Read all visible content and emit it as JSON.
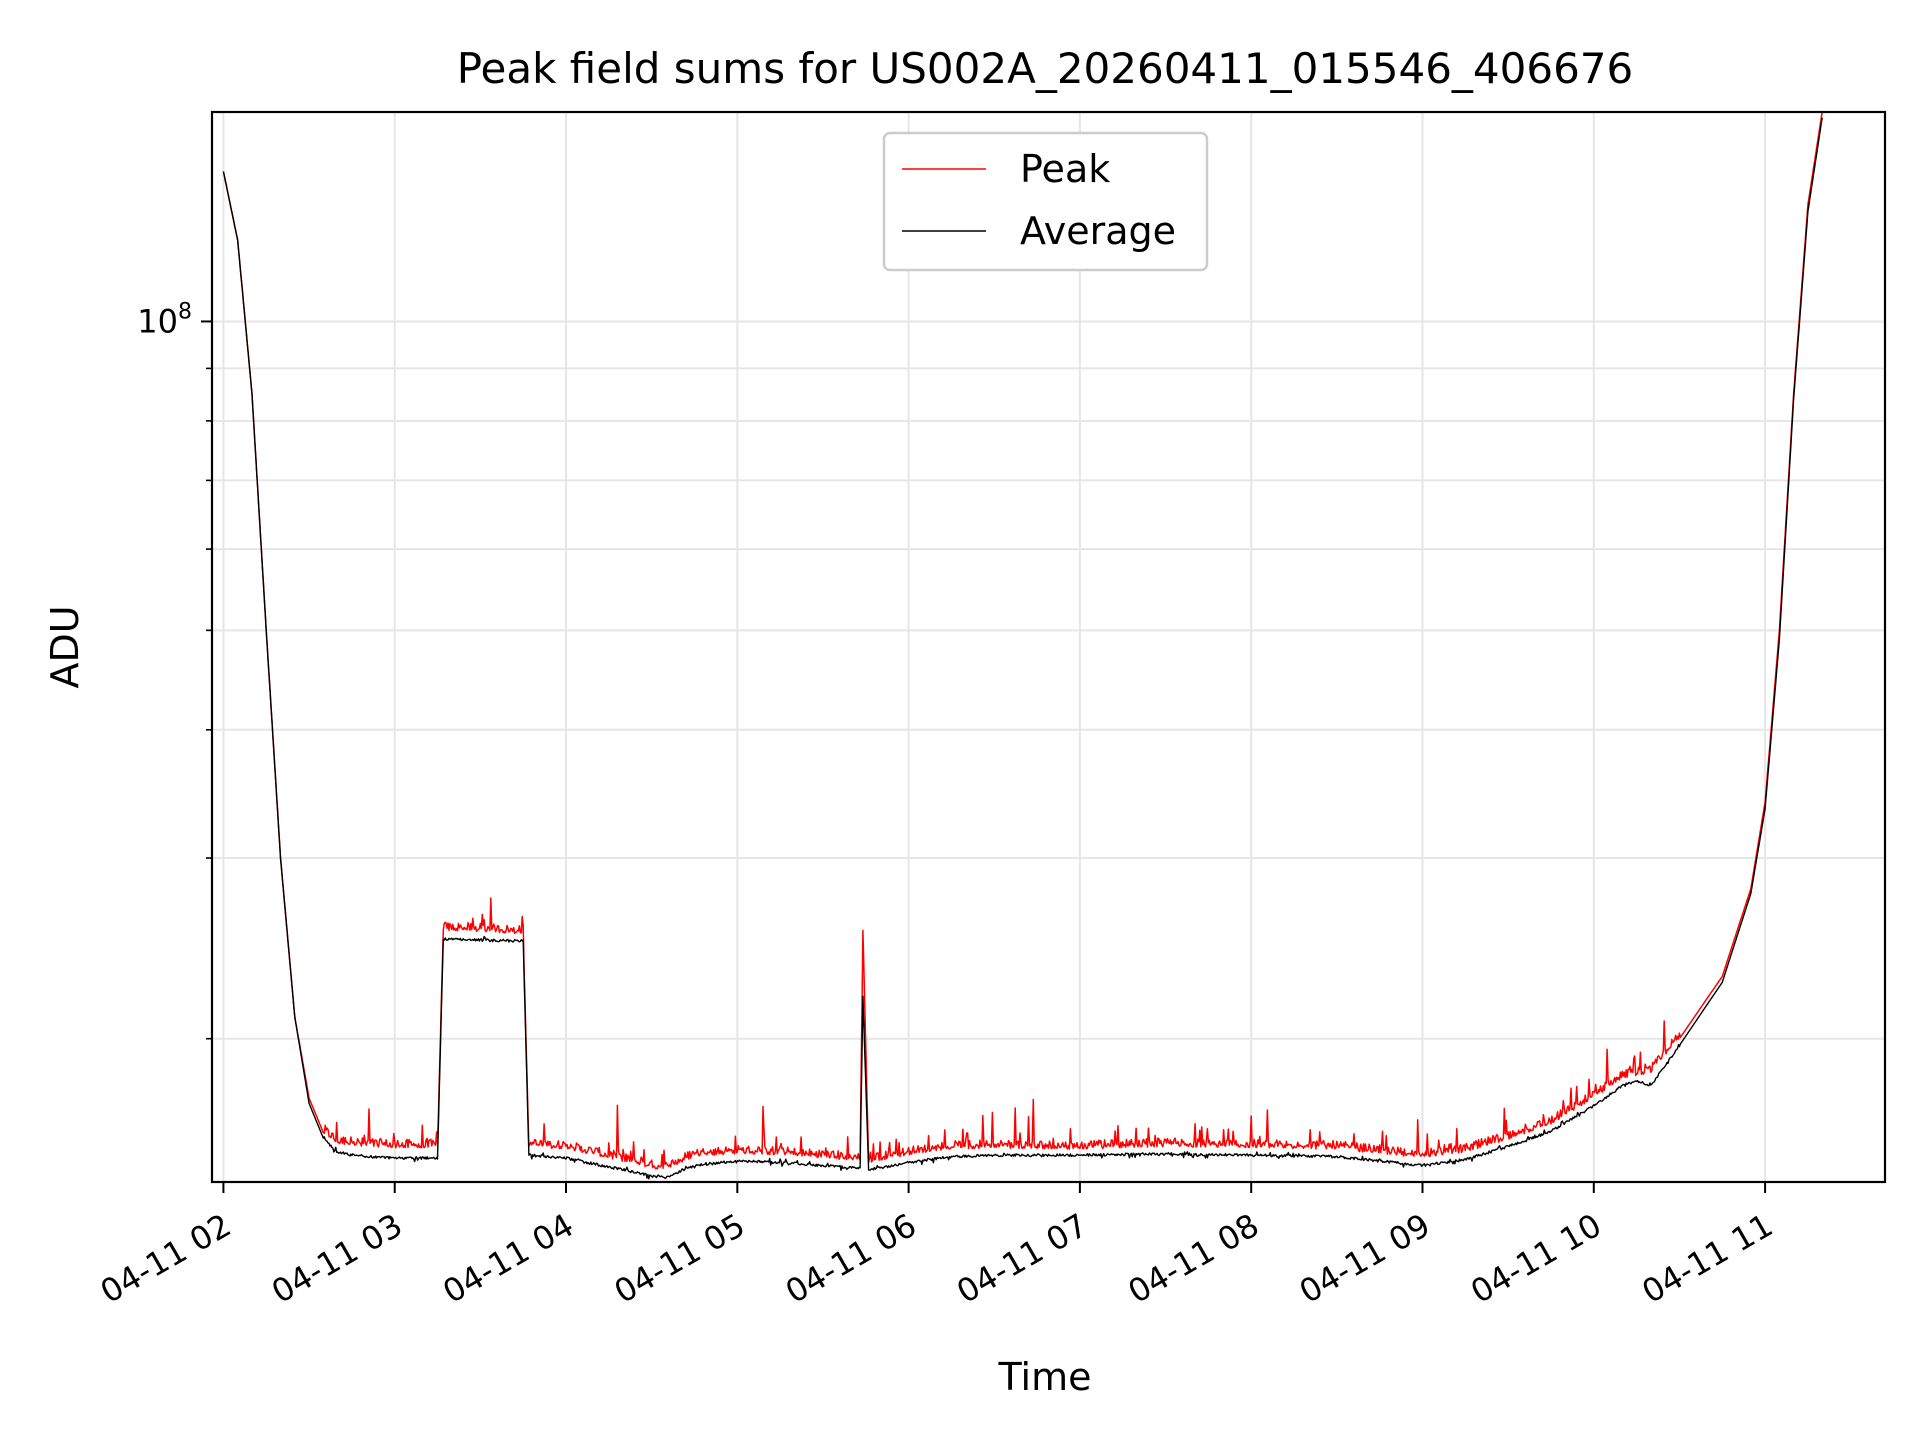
{
  "chart_data": {
    "type": "line",
    "title": "Peak field sums for US002A_20260411_015546_406676",
    "xlabel": "Time",
    "ylabel": "ADU",
    "y_scale": "log",
    "ylim": [
      14500000,
      160000000
    ],
    "xlim": [
      "2026-04-11 01:56",
      "2026-04-11 11:42"
    ],
    "grid": true,
    "legend_position": "upper center",
    "x_ticks": [
      "2026-04-11 02:00",
      "2026-04-11 03:00",
      "2026-04-11 04:00",
      "2026-04-11 05:00",
      "2026-04-11 06:00",
      "2026-04-11 07:00",
      "2026-04-11 08:00",
      "2026-04-11 09:00",
      "2026-04-11 10:00",
      "2026-04-11 11:00"
    ],
    "x_tick_labels": [
      "04-11 02",
      "04-11 03",
      "04-11 04",
      "04-11 05",
      "04-11 06",
      "04-11 07",
      "04-11 08",
      "04-11 09",
      "04-11 10",
      "04-11 11"
    ],
    "y_major_ticks": [
      100000000
    ],
    "y_major_tick_labels": [
      {
        "base": "10",
        "exp": "8"
      }
    ],
    "y_minor_ticks": [
      20000000,
      30000000,
      40000000,
      50000000,
      60000000,
      70000000,
      80000000,
      90000000,
      200000000
    ],
    "series": [
      {
        "name": "Peak",
        "color": "#ff0000",
        "noise_amplitude": 0.035,
        "x": [
          "2026-04-11 02:00",
          "2026-04-11 02:05",
          "2026-04-11 02:10",
          "2026-04-11 02:15",
          "2026-04-11 02:20",
          "2026-04-11 02:25",
          "2026-04-11 02:30",
          "2026-04-11 02:35",
          "2026-04-11 02:40",
          "2026-04-11 02:50",
          "2026-04-11 03:00",
          "2026-04-11 03:15",
          "2026-04-11 03:17",
          "2026-04-11 03:45",
          "2026-04-11 03:47",
          "2026-04-11 04:00",
          "2026-04-11 04:15",
          "2026-04-11 04:30",
          "2026-04-11 04:35",
          "2026-04-11 04:45",
          "2026-04-11 05:00",
          "2026-04-11 05:15",
          "2026-04-11 05:30",
          "2026-04-11 05:43",
          "2026-04-11 05:44",
          "2026-04-11 05:46",
          "2026-04-11 06:00",
          "2026-04-11 06:15",
          "2026-04-11 06:30",
          "2026-04-11 07:00",
          "2026-04-11 07:30",
          "2026-04-11 08:00",
          "2026-04-11 08:30",
          "2026-04-11 09:00",
          "2026-04-11 09:15",
          "2026-04-11 09:30",
          "2026-04-11 09:45",
          "2026-04-11 10:00",
          "2026-04-11 10:10",
          "2026-04-11 10:15",
          "2026-04-11 10:20",
          "2026-04-11 10:30",
          "2026-04-11 10:45",
          "2026-04-11 10:55",
          "2026-04-11 11:00",
          "2026-04-11 11:05",
          "2026-04-11 11:10",
          "2026-04-11 11:15",
          "2026-04-11 11:20"
        ],
        "values": [
          140000000,
          120000000,
          85000000,
          50000000,
          30000000,
          21000000,
          17500000,
          16200000,
          15800000,
          15700000,
          15650000,
          15650000,
          25500000,
          25300000,
          15700000,
          15600000,
          15300000,
          14950000,
          14900000,
          15350000,
          15450000,
          15400000,
          15300000,
          15200000,
          25500000,
          15150000,
          15400000,
          15600000,
          15650000,
          15600000,
          15700000,
          15650000,
          15600000,
          15300000,
          15500000,
          15950000,
          16500000,
          17500000,
          18300000,
          18400000,
          18500000,
          20000000,
          23000000,
          28000000,
          34000000,
          50000000,
          85000000,
          130000000,
          160000000
        ]
      },
      {
        "name": "Average",
        "color": "#000000",
        "noise_amplitude": 0.012,
        "x": [
          "2026-04-11 02:00",
          "2026-04-11 02:05",
          "2026-04-11 02:10",
          "2026-04-11 02:15",
          "2026-04-11 02:20",
          "2026-04-11 02:25",
          "2026-04-11 02:30",
          "2026-04-11 02:35",
          "2026-04-11 02:40",
          "2026-04-11 02:50",
          "2026-04-11 03:00",
          "2026-04-11 03:15",
          "2026-04-11 03:17",
          "2026-04-11 03:45",
          "2026-04-11 03:47",
          "2026-04-11 04:00",
          "2026-04-11 04:15",
          "2026-04-11 04:30",
          "2026-04-11 04:35",
          "2026-04-11 04:45",
          "2026-04-11 05:00",
          "2026-04-11 05:15",
          "2026-04-11 05:30",
          "2026-04-11 05:43",
          "2026-04-11 05:44",
          "2026-04-11 05:46",
          "2026-04-11 06:00",
          "2026-04-11 06:15",
          "2026-04-11 06:30",
          "2026-04-11 07:00",
          "2026-04-11 07:30",
          "2026-04-11 08:00",
          "2026-04-11 08:30",
          "2026-04-11 09:00",
          "2026-04-11 09:15",
          "2026-04-11 09:30",
          "2026-04-11 09:45",
          "2026-04-11 10:00",
          "2026-04-11 10:10",
          "2026-04-11 10:15",
          "2026-04-11 10:20",
          "2026-04-11 10:30",
          "2026-04-11 10:45",
          "2026-04-11 10:55",
          "2026-04-11 11:00",
          "2026-04-11 11:05",
          "2026-04-11 11:10",
          "2026-04-11 11:15",
          "2026-04-11 11:20"
        ],
        "values": [
          140000000,
          120000000,
          85000000,
          50000000,
          30000000,
          21000000,
          17300000,
          16000000,
          15500000,
          15350000,
          15300000,
          15300000,
          25000000,
          24900000,
          15400000,
          15300000,
          15000000,
          14700000,
          14650000,
          15050000,
          15200000,
          15150000,
          15050000,
          14950000,
          22000000,
          14900000,
          15150000,
          15350000,
          15400000,
          15400000,
          15450000,
          15400000,
          15350000,
          15050000,
          15250000,
          15700000,
          16250000,
          17200000,
          18000000,
          18200000,
          18000000,
          19700000,
          22700000,
          27700000,
          33500000,
          49000000,
          84000000,
          128000000,
          158000000
        ]
      }
    ]
  }
}
